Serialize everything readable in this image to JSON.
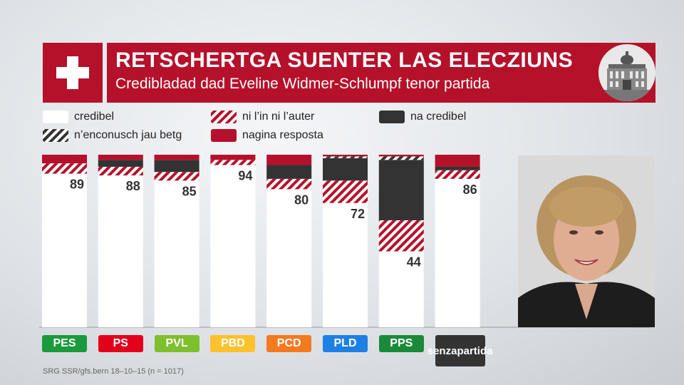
{
  "header": {
    "title": "RETSCHERTGA SUENTER LAS ELECZIUNS",
    "subtitle": "Credibladad dad Eveline Widmer-Schlumpf tenor partida"
  },
  "legend": [
    {
      "label": "credibel",
      "key": "credibel"
    },
    {
      "label": "ni l’in ni l’auter",
      "key": "neutral"
    },
    {
      "label": "na credibel",
      "key": "non"
    },
    {
      "label": "n’enconusch jau betg",
      "key": "unknown"
    },
    {
      "label": "nagina resposta",
      "key": "noresp"
    }
  ],
  "colors": {
    "red": "#b5112a",
    "dark": "#333333",
    "white": "#ffffff"
  },
  "chart_data": {
    "type": "bar",
    "stacked": true,
    "ylim": [
      0,
      100
    ],
    "categories": [
      "PES",
      "PS",
      "PVL",
      "PBD",
      "PCD",
      "PLD",
      "PPS",
      "senza partida"
    ],
    "category_colors": [
      "#1a9a3c",
      "#e3001b",
      "#7ebf2e",
      "#fdc12d",
      "#f47a1f",
      "#1f80e3",
      "#1a8a3a",
      "#333333"
    ],
    "series": [
      {
        "name": "credibel",
        "values": [
          89,
          88,
          85,
          94,
          80,
          72,
          44,
          86
        ]
      },
      {
        "name": "ni l’in ni l’auter",
        "values": [
          6,
          5,
          5,
          3,
          6,
          13,
          18,
          5
        ]
      },
      {
        "name": "na credibel",
        "values": [
          0,
          4,
          7,
          0,
          8,
          13,
          35,
          2
        ]
      },
      {
        "name": "n’enconusch jau betg",
        "values": [
          0,
          0,
          0,
          0,
          0,
          1,
          2,
          0
        ]
      },
      {
        "name": "nagina resposta",
        "values": [
          5,
          3,
          3,
          3,
          6,
          1,
          1,
          7
        ]
      }
    ]
  },
  "photo": {
    "description_icon": "portrait-photo"
  },
  "building_icon": "parliament-building-icon",
  "source": "SRG SSR/gfs.bern 18–10–15 (n = 1017)"
}
